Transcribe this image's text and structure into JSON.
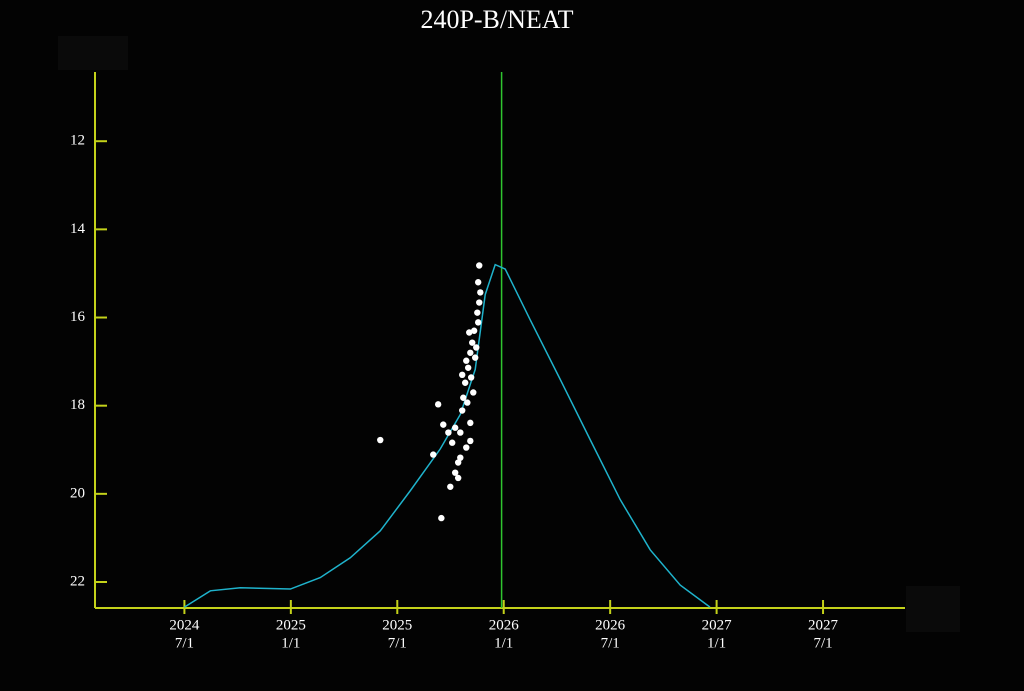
{
  "chart_data": {
    "type": "scatter",
    "title": "240P-B/NEAT",
    "xlim": [
      2024.08,
      2027.885
    ],
    "ylim": [
      10.43,
      22.59
    ],
    "y_inverted": true,
    "xticks": [
      {
        "value": 2024.5,
        "label": [
          "2024",
          "7/1"
        ]
      },
      {
        "value": 2025.0,
        "label": [
          "2025",
          "1/1"
        ]
      },
      {
        "value": 2025.5,
        "label": [
          "2025",
          "7/1"
        ]
      },
      {
        "value": 2026.0,
        "label": [
          "2026",
          "1/1"
        ]
      },
      {
        "value": 2026.5,
        "label": [
          "2026",
          "7/1"
        ]
      },
      {
        "value": 2027.0,
        "label": [
          "2027",
          "1/1"
        ]
      },
      {
        "value": 2027.5,
        "label": [
          "2027",
          "7/1"
        ]
      }
    ],
    "yticks": [
      12,
      14,
      16,
      18,
      20,
      22
    ],
    "marker_x": 2025.99,
    "marker_color": "#2fc52f",
    "axis_color": "#c4d21a",
    "curve": {
      "color": "#1fb3cc",
      "x": [
        2024.5,
        2024.622,
        2024.763,
        2024.998,
        2025.138,
        2025.279,
        2025.42,
        2025.561,
        2025.702,
        2025.796,
        2025.866,
        2025.913,
        2025.96,
        2026.007,
        2026.124,
        2026.265,
        2026.406,
        2026.547,
        2026.688,
        2026.829,
        2026.969
      ],
      "values": [
        22.57,
        22.2,
        22.13,
        22.16,
        21.9,
        21.45,
        20.84,
        19.93,
        18.98,
        18.2,
        17.18,
        15.48,
        14.8,
        14.9,
        16.05,
        17.4,
        18.77,
        20.13,
        21.27,
        22.07,
        22.57
      ]
    },
    "points": {
      "color": "#ffffff",
      "x": [
        2025.42,
        2025.707,
        2025.692,
        2025.669,
        2025.716,
        2025.749,
        2025.758,
        2025.772,
        2025.786,
        2025.796,
        2025.805,
        2025.81,
        2025.819,
        2025.824,
        2025.833,
        2025.843,
        2025.843,
        2025.852,
        2025.857,
        2025.861,
        2025.871,
        2025.876,
        2025.88,
        2025.885,
        2025.89,
        2025.88,
        2025.885,
        2025.843,
        2025.796,
        2025.74,
        2025.829,
        2025.847,
        2025.866,
        2025.838,
        2025.824,
        2025.805,
        2025.772,
        2025.786
      ],
      "values": [
        18.78,
        20.55,
        17.97,
        19.11,
        18.43,
        19.84,
        18.84,
        19.52,
        19.29,
        18.61,
        18.11,
        17.82,
        17.48,
        18.95,
        17.14,
        18.39,
        16.8,
        16.57,
        17.7,
        16.3,
        16.68,
        15.89,
        16.11,
        15.66,
        15.43,
        15.2,
        14.82,
        18.8,
        19.18,
        18.61,
        17.93,
        17.36,
        16.91,
        16.34,
        16.98,
        17.3,
        18.5,
        19.64
      ]
    }
  }
}
